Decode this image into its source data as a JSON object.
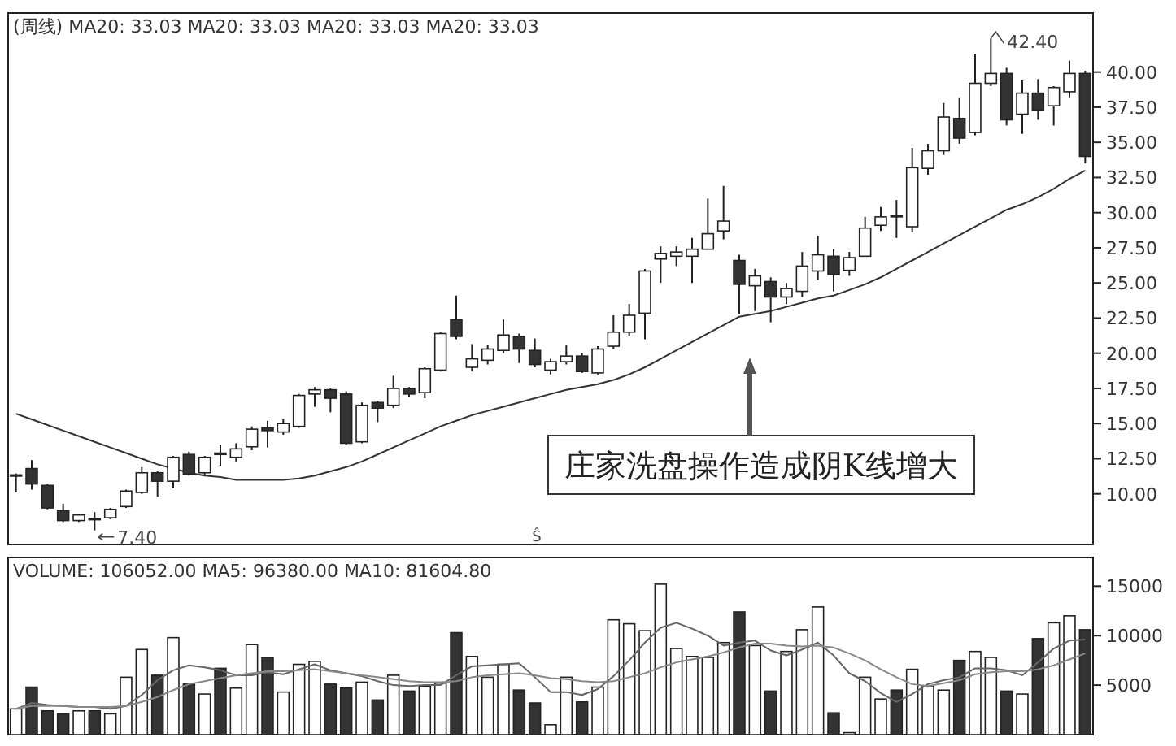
{
  "chart_data": [
    {
      "type": "candlestick",
      "title": "(周线) MA20: 33.03 MA20: 33.03 MA20: 33.03 MA20: 33.03",
      "tick_labels": "y",
      "categories": [
        null,
        null,
        null,
        null,
        null,
        null,
        null,
        null,
        null,
        null,
        null,
        null,
        null,
        null,
        null,
        null,
        null,
        null,
        null,
        null,
        null,
        null,
        null,
        null,
        null,
        null,
        null,
        null,
        null,
        null,
        null,
        null,
        null,
        null,
        null,
        null,
        null,
        null,
        null,
        null,
        null,
        null,
        null,
        null,
        null,
        null,
        null,
        null,
        null,
        null,
        null,
        null,
        null,
        null,
        null,
        null,
        null,
        null,
        null,
        null,
        null,
        null,
        null,
        null,
        null,
        null,
        null,
        null,
        null
      ],
      "ohlc": [
        [
          11.3,
          11.45,
          10.1,
          11.35
        ],
        [
          11.8,
          12.4,
          10.3,
          10.7
        ],
        [
          10.6,
          10.7,
          8.9,
          9.0
        ],
        [
          8.8,
          9.3,
          8.0,
          8.1
        ],
        [
          8.1,
          8.6,
          8.0,
          8.5
        ],
        [
          8.25,
          8.7,
          7.4,
          8.2
        ],
        [
          8.3,
          9.0,
          8.2,
          8.9
        ],
        [
          9.1,
          10.3,
          9.0,
          10.2
        ],
        [
          10.1,
          11.9,
          10.0,
          11.5
        ],
        [
          11.5,
          11.6,
          9.8,
          10.9
        ],
        [
          10.9,
          12.7,
          10.4,
          12.6
        ],
        [
          12.8,
          13.0,
          11.3,
          11.4
        ],
        [
          11.5,
          12.7,
          11.3,
          12.6
        ],
        [
          12.9,
          13.5,
          12.0,
          12.8
        ],
        [
          12.6,
          13.6,
          12.3,
          13.2
        ],
        [
          13.35,
          14.8,
          13.1,
          14.6
        ],
        [
          14.7,
          15.2,
          13.3,
          14.5
        ],
        [
          14.4,
          15.3,
          14.2,
          15.0
        ],
        [
          14.8,
          17.1,
          14.7,
          17.0
        ],
        [
          17.1,
          17.6,
          16.2,
          17.4
        ],
        [
          17.4,
          17.5,
          15.8,
          16.8
        ],
        [
          17.1,
          17.3,
          13.5,
          13.6
        ],
        [
          13.7,
          16.5,
          13.6,
          16.3
        ],
        [
          16.5,
          16.6,
          15.1,
          16.1
        ],
        [
          16.3,
          18.4,
          16.1,
          17.5
        ],
        [
          17.5,
          17.6,
          16.9,
          17.1
        ],
        [
          17.2,
          19.0,
          16.8,
          18.9
        ],
        [
          18.8,
          21.5,
          18.7,
          21.4
        ],
        [
          22.4,
          24.1,
          21.0,
          21.2
        ],
        [
          19.0,
          20.65,
          18.7,
          19.6
        ],
        [
          19.5,
          20.6,
          19.2,
          20.3
        ],
        [
          20.2,
          22.4,
          20.0,
          21.3
        ],
        [
          21.2,
          21.4,
          19.3,
          20.3
        ],
        [
          20.2,
          21.05,
          19.0,
          19.2
        ],
        [
          18.8,
          19.6,
          18.5,
          19.4
        ],
        [
          19.4,
          20.6,
          19.2,
          19.8
        ],
        [
          19.8,
          20.0,
          18.6,
          18.7
        ],
        [
          18.6,
          20.5,
          18.5,
          20.3
        ],
        [
          20.5,
          22.7,
          20.3,
          21.5
        ],
        [
          21.5,
          23.5,
          21.2,
          22.7
        ],
        [
          22.85,
          26.0,
          21.0,
          25.85
        ],
        [
          26.7,
          27.6,
          25.0,
          27.1
        ],
        [
          26.9,
          27.6,
          26.2,
          27.2
        ],
        [
          26.9,
          28.2,
          25.0,
          27.4
        ],
        [
          27.4,
          31.0,
          27.4,
          28.5
        ],
        [
          28.7,
          31.9,
          28.1,
          29.4
        ],
        [
          26.6,
          27.0,
          22.8,
          24.9
        ],
        [
          24.8,
          26.0,
          23.0,
          25.5
        ],
        [
          25.1,
          25.4,
          22.2,
          24.0
        ],
        [
          24.0,
          25.0,
          23.5,
          24.6
        ],
        [
          24.4,
          27.2,
          24.0,
          26.2
        ],
        [
          25.85,
          28.35,
          25.2,
          27.0
        ],
        [
          26.9,
          27.4,
          24.4,
          25.6
        ],
        [
          25.9,
          27.2,
          25.5,
          26.8
        ],
        [
          26.9,
          29.7,
          26.9,
          28.9
        ],
        [
          29.1,
          30.4,
          28.7,
          29.7
        ],
        [
          29.8,
          30.9,
          28.2,
          29.7
        ],
        [
          29.0,
          34.6,
          28.6,
          33.2
        ],
        [
          33.15,
          34.9,
          32.7,
          34.4
        ],
        [
          34.4,
          37.8,
          34.1,
          36.8
        ],
        [
          36.7,
          38.2,
          34.9,
          35.3
        ],
        [
          35.7,
          41.3,
          35.5,
          39.2
        ],
        [
          39.2,
          42.4,
          39.0,
          39.9
        ],
        [
          39.9,
          40.3,
          36.2,
          36.6
        ],
        [
          37.0,
          39.4,
          35.6,
          38.5
        ],
        [
          38.5,
          39.5,
          36.6,
          37.3
        ],
        [
          37.6,
          39.0,
          36.2,
          38.9
        ],
        [
          38.6,
          40.8,
          38.2,
          39.9
        ],
        [
          39.9,
          40.1,
          33.5,
          34.0
        ]
      ],
      "series": [
        {
          "type": "line",
          "color": "#333333",
          "values": [
            15.7,
            15.3,
            14.9,
            14.5,
            14.1,
            13.7,
            13.3,
            12.9,
            12.5,
            12.1,
            11.8,
            11.5,
            11.3,
            11.2,
            11.0,
            11.0,
            11.0,
            11.0,
            11.1,
            11.3,
            11.6,
            11.9,
            12.3,
            12.8,
            13.3,
            13.8,
            14.3,
            14.8,
            15.2,
            15.6,
            15.9,
            16.2,
            16.5,
            16.8,
            17.1,
            17.4,
            17.6,
            17.8,
            18.1,
            18.5,
            19.0,
            19.6,
            20.2,
            20.8,
            21.4,
            22.0,
            22.6,
            22.8,
            23.0,
            23.3,
            23.6,
            23.9,
            24.1,
            24.5,
            24.9,
            25.4,
            26.0,
            26.6,
            27.2,
            27.8,
            28.4,
            29.0,
            29.6,
            30.2,
            30.6,
            31.1,
            31.7,
            32.4,
            33.0
          ]
        }
      ],
      "ylim": [
        6.4,
        44.2
      ],
      "yticks": [
        {
          "value": 10,
          "label": "10.00"
        },
        {
          "value": 12.5,
          "label": "12.50"
        },
        {
          "value": 15,
          "label": "15.00"
        },
        {
          "value": 17.5,
          "label": "17.50"
        },
        {
          "value": 20,
          "label": "20.00"
        },
        {
          "value": 22.5,
          "label": "22.50"
        },
        {
          "value": 25,
          "label": "25.00"
        },
        {
          "value": 27.5,
          "label": "27.50"
        },
        {
          "value": 30,
          "label": "30.00"
        },
        {
          "value": 32.5,
          "label": "32.50"
        },
        {
          "value": 35,
          "label": "35.00"
        },
        {
          "value": 37.5,
          "label": "37.50"
        },
        {
          "value": 40,
          "label": "40.00"
        }
      ],
      "annotations": [
        "42.40",
        "7.40",
        "庄家洗盘操作造成阴K线增大",
        "Ŝ"
      ]
    },
    {
      "type": "bar",
      "title": "VOLUME: 106052.00 MA5: 96380.00 MA10: 81604.80",
      "tick_labels": "y",
      "categories": [
        null,
        null,
        null,
        null,
        null,
        null,
        null,
        null,
        null,
        null,
        null,
        null,
        null,
        null,
        null,
        null,
        null,
        null,
        null,
        null,
        null,
        null,
        null,
        null,
        null,
        null,
        null,
        null,
        null,
        null,
        null,
        null,
        null,
        null,
        null,
        null,
        null,
        null,
        null,
        null,
        null,
        null,
        null,
        null,
        null,
        null,
        null,
        null,
        null,
        null,
        null,
        null,
        null,
        null,
        null,
        null,
        null,
        null,
        null,
        null,
        null,
        null,
        null,
        null,
        null,
        null,
        null,
        null,
        null
      ],
      "series": [
        {
          "values": [
            2600,
            4800,
            2400,
            2100,
            2400,
            2400,
            2100,
            5800,
            8600,
            6000,
            9800,
            5100,
            4100,
            6700,
            4700,
            9100,
            7800,
            4300,
            7100,
            7400,
            5100,
            4700,
            5300,
            3500,
            6000,
            4400,
            4900,
            5200,
            10300,
            7900,
            5800,
            7100,
            4500,
            3200,
            1000,
            5800,
            3300,
            4800,
            11600,
            11200,
            10500,
            15200,
            8700,
            7900,
            7800,
            9300,
            12400,
            9000,
            4400,
            8400,
            10600,
            12900,
            2200,
            200,
            5800,
            3600,
            4500,
            6600,
            4900,
            4500,
            7500,
            8400,
            7800,
            4400,
            4100,
            9700,
            11300,
            12000,
            10600
          ],
          "colors": [
            "#ffffff",
            "#333333",
            "#333333",
            "#333333",
            "#ffffff",
            "#333333",
            "#ffffff",
            "#ffffff",
            "#ffffff",
            "#333333",
            "#ffffff",
            "#333333",
            "#ffffff",
            "#333333",
            "#ffffff",
            "#ffffff",
            "#333333",
            "#ffffff",
            "#ffffff",
            "#ffffff",
            "#333333",
            "#333333",
            "#ffffff",
            "#333333",
            "#ffffff",
            "#333333",
            "#ffffff",
            "#ffffff",
            "#333333",
            "#ffffff",
            "#ffffff",
            "#ffffff",
            "#333333",
            "#333333",
            "#ffffff",
            "#ffffff",
            "#333333",
            "#ffffff",
            "#ffffff",
            "#ffffff",
            "#ffffff",
            "#ffffff",
            "#ffffff",
            "#ffffff",
            "#ffffff",
            "#ffffff",
            "#333333",
            "#ffffff",
            "#333333",
            "#ffffff",
            "#ffffff",
            "#ffffff",
            "#333333",
            "#ffffff",
            "#ffffff",
            "#ffffff",
            "#333333",
            "#ffffff",
            "#ffffff",
            "#ffffff",
            "#333333",
            "#ffffff",
            "#ffffff",
            "#333333",
            "#ffffff",
            "#333333",
            "#ffffff",
            "#ffffff",
            "#333333"
          ]
        },
        {
          "type": "line",
          "color": "#666666",
          "values": [
            2600,
            3200,
            3000,
            2900,
            2800,
            2800,
            2600,
            2900,
            4000,
            5500,
            6500,
            7000,
            6800,
            6500,
            6000,
            6000,
            6300,
            6100,
            6600,
            7100,
            6500,
            6200,
            5900,
            5400,
            5000,
            4900,
            5000,
            5000,
            6000,
            6900,
            7000,
            7100,
            7200,
            5800,
            4300,
            4300,
            4000,
            4600,
            5900,
            7500,
            9300,
            10800,
            11300,
            10700,
            10000,
            9000,
            9300,
            9500,
            8500,
            8000,
            8600,
            9300,
            8000,
            6200,
            5400,
            4200,
            3300,
            4100,
            5100,
            5500,
            5800,
            6700,
            6700,
            6500,
            6000,
            7300,
            8700,
            9500,
            9600
          ]
        },
        {
          "type": "line",
          "color": "#888888",
          "values": [
            2600,
            2900,
            2900,
            2900,
            2800,
            2800,
            2800,
            2900,
            3300,
            3800,
            4500,
            5100,
            5400,
            5700,
            6000,
            6200,
            6400,
            6400,
            6500,
            6600,
            6400,
            6200,
            6000,
            5800,
            5600,
            5400,
            5300,
            5300,
            5400,
            5800,
            6000,
            6100,
            6200,
            6000,
            5700,
            5600,
            5400,
            5300,
            5400,
            5800,
            6200,
            6800,
            7300,
            7600,
            7900,
            8300,
            8800,
            9200,
            9200,
            9000,
            8900,
            9000,
            8800,
            8200,
            7500,
            6600,
            5800,
            5100,
            4900,
            5200,
            5500,
            6100,
            6300,
            6400,
            6400,
            6600,
            7000,
            7600,
            8200
          ]
        }
      ],
      "ylim": [
        0,
        17900
      ],
      "yticks": [
        5000,
        10000,
        15000
      ]
    }
  ]
}
